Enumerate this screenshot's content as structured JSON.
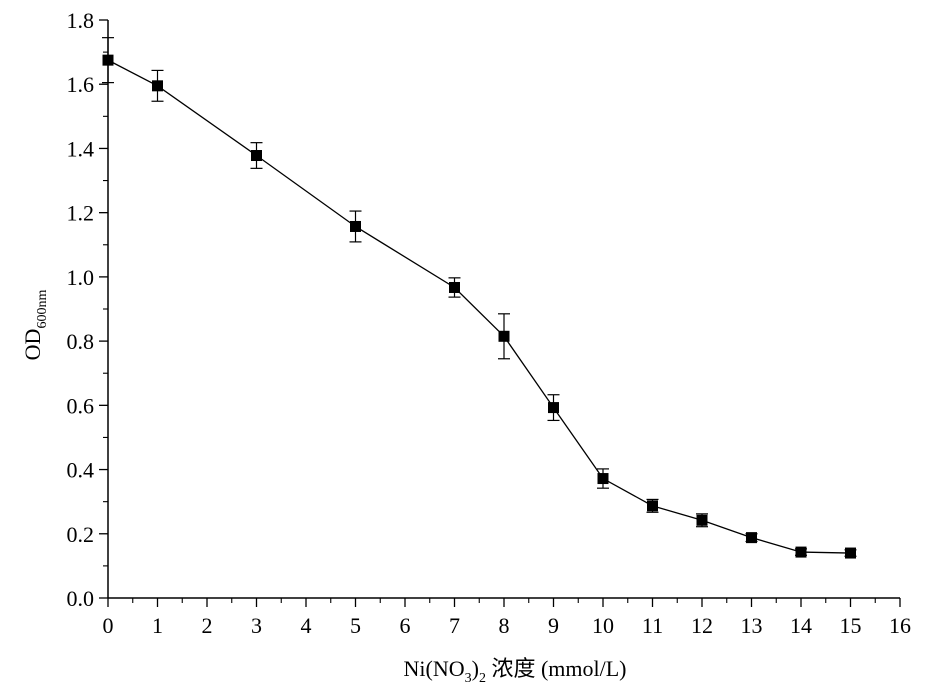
{
  "chart_data": {
    "type": "line",
    "xlabel": {
      "main": "Ni(NO",
      "sub1": "3",
      "after_paren": ")",
      "sub2": "2",
      "suffix": " 浓度 (mmol/L)"
    },
    "ylabel": {
      "main": "OD",
      "sub": "600nm"
    },
    "xlim": [
      0,
      16
    ],
    "ylim": [
      0,
      1.8
    ],
    "x_ticks": [
      0,
      1,
      2,
      3,
      4,
      5,
      6,
      7,
      8,
      9,
      10,
      11,
      12,
      13,
      14,
      15,
      16
    ],
    "y_ticks": [
      "0.0",
      "0.2",
      "0.4",
      "0.6",
      "0.8",
      "1.0",
      "1.2",
      "1.4",
      "1.6",
      "1.8"
    ],
    "grid": false,
    "marker": "square",
    "color": "#000000",
    "series": [
      {
        "x": [
          0,
          1,
          3,
          5,
          7,
          8,
          9,
          10,
          11,
          12,
          13,
          14,
          15
        ],
        "y": [
          1.675,
          1.595,
          1.378,
          1.157,
          0.967,
          0.815,
          0.593,
          0.372,
          0.287,
          0.242,
          0.188,
          0.143,
          0.14
        ],
        "err": [
          0.07,
          0.048,
          0.04,
          0.048,
          0.03,
          0.07,
          0.04,
          0.03,
          0.02,
          0.02,
          0.012,
          0.01,
          0.01
        ]
      }
    ]
  }
}
